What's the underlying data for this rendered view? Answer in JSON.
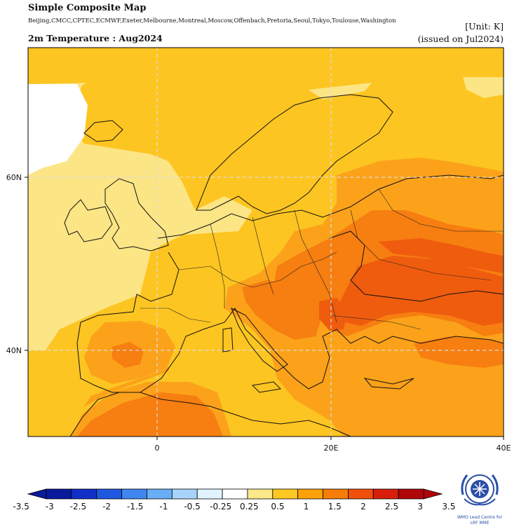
{
  "header": {
    "title": "Simple Composite Map",
    "models": "Beijing,CMCC,CPTEC,ECMWF,Exeter,Melbourne,Montreal,Moscow,Offenbach,Pretoria,Seoul,Tokyo,Toulouse,Washington",
    "subtitle": "2m Temperature : Aug2024",
    "unit": "[Unit: K]",
    "issued": "(issued on Jul2024)"
  },
  "axes": {
    "lat_labels": [
      "60N",
      "40N"
    ],
    "lon_labels": [
      "0",
      "20E",
      "40E"
    ]
  },
  "colorbar": {
    "labels": [
      "-3.5",
      "-3",
      "-2.5",
      "-2",
      "-1.5",
      "-1",
      "-0.5",
      "-0.25",
      "0.25",
      "0.5",
      "1",
      "1.5",
      "2",
      "2.5",
      "3",
      "3.5"
    ],
    "colors": [
      "#0a1a9c",
      "#1030c8",
      "#1f58e0",
      "#3f86f0",
      "#69aef5",
      "#a8d4fb",
      "#dff3ff",
      "#ffffff",
      "#fbe88a",
      "#fdc821",
      "#fca10a",
      "#f77d0a",
      "#ef4f0a",
      "#d81e0a",
      "#b0060a"
    ]
  },
  "logo": {
    "text_line1": "WMO Lead Centre for",
    "text_line2": "LRF MME"
  },
  "colors": {
    "anom_025_05": "#fce585",
    "anom_05_1": "#fdc521",
    "anom_1_15": "#fba21a",
    "anom_15_2": "#f77e10",
    "anom_2_25": "#ef5c0e"
  }
}
